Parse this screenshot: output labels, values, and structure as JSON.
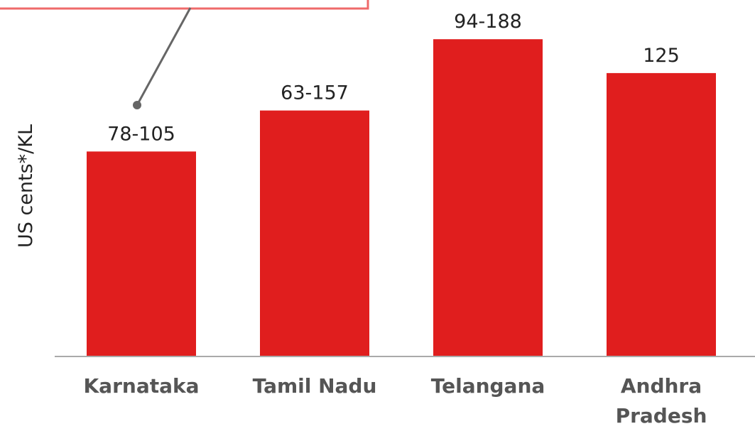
{
  "chart_data": {
    "type": "bar",
    "y_label": "US cents*/KL",
    "categories": [
      "Karnataka",
      "Tamil Nadu",
      "Telangana",
      "Andhra Pradesh"
    ],
    "values": [
      57.5,
      69,
      89,
      79.5
    ],
    "range_labels": [
      "78-105",
      "63-157",
      "94-188",
      "125"
    ],
    "color": "#e01e1e",
    "ylim": [
      0,
      100
    ]
  }
}
